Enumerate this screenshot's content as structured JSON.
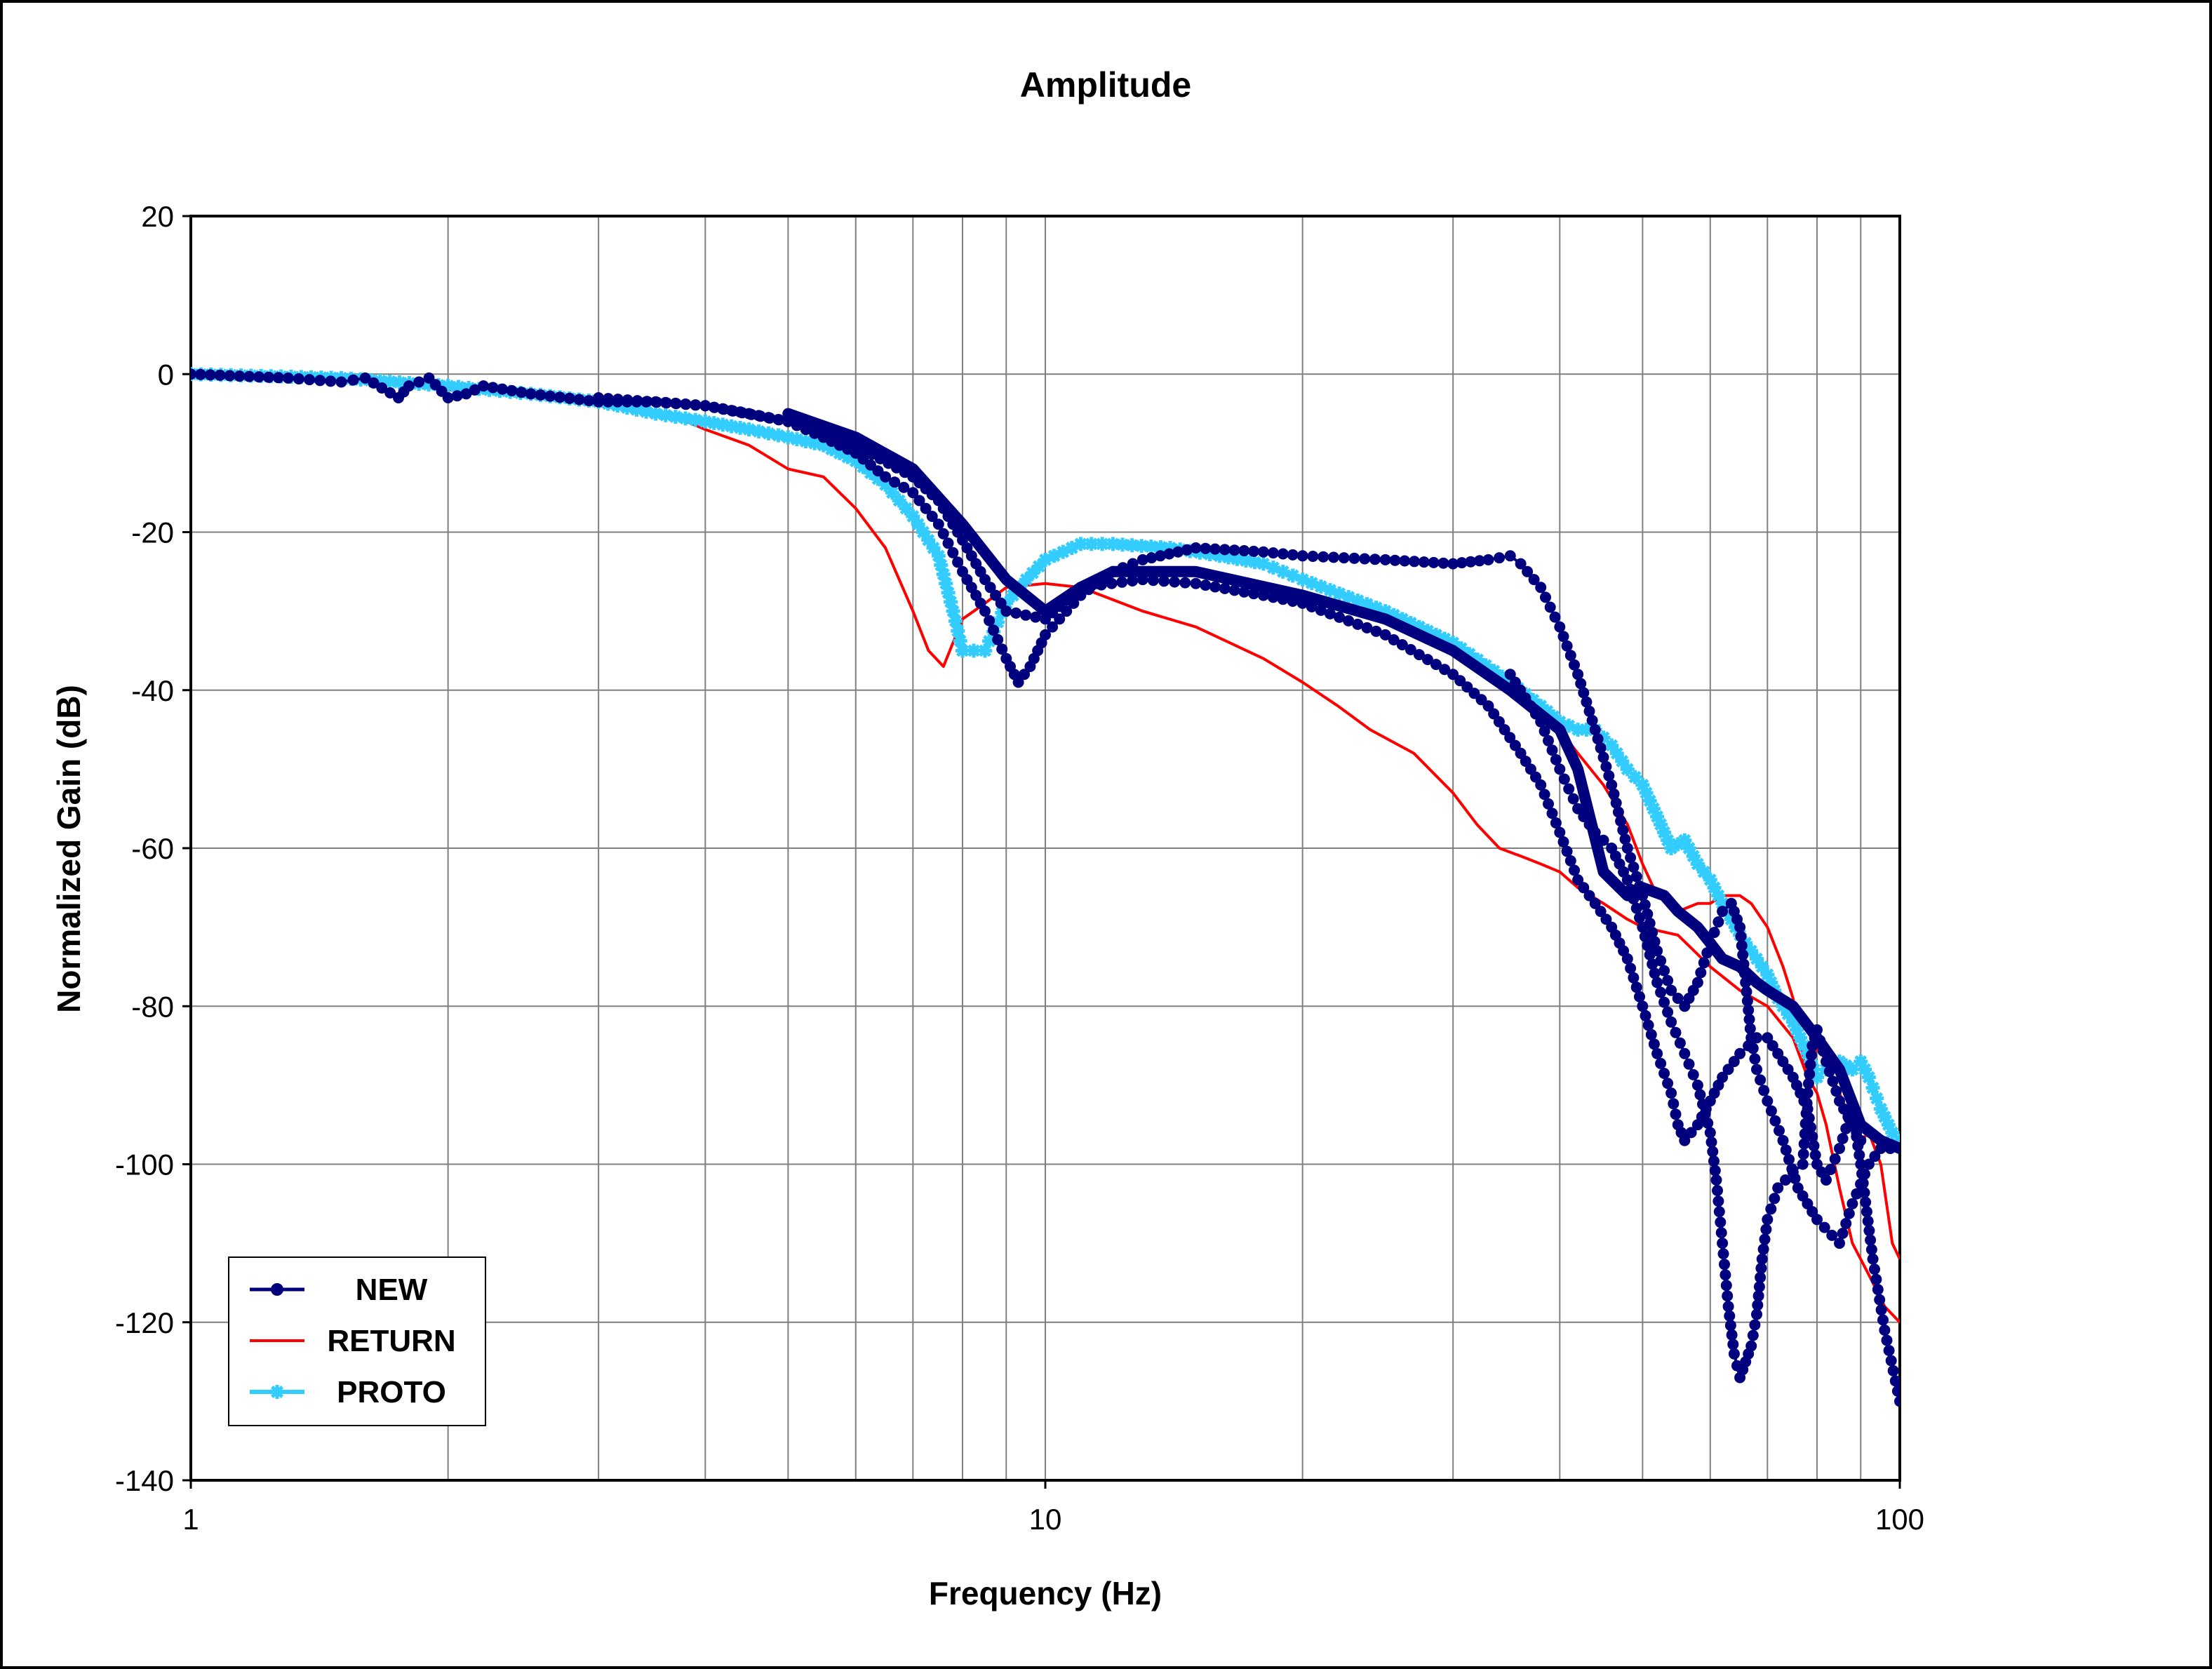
{
  "colors": {
    "new": "#00007f",
    "return": "#ff0000",
    "proto": "#33ccff",
    "grid": "#808080",
    "frame": "#000000",
    "background": "#ffffff"
  },
  "chart_data": {
    "type": "line",
    "title": "Amplitude",
    "xlabel": "Frequency (Hz)",
    "ylabel": "Normalized Gain (dB)",
    "xscale": "log",
    "xlim": [
      1,
      100
    ],
    "ylim": [
      -140,
      20
    ],
    "x_tick_labels": [
      "1",
      "10",
      "100"
    ],
    "y_ticks": [
      20,
      0,
      -20,
      -40,
      -60,
      -80,
      -100,
      -120,
      -140
    ],
    "y_tick_labels": [
      "20",
      "0",
      "-20",
      "-40",
      "-60",
      "-80",
      "-100",
      "-120",
      "-140"
    ],
    "grid": true,
    "legend": {
      "position": "bottom-left",
      "entries": [
        "NEW",
        "RETURN",
        "PROTO"
      ]
    },
    "series": [
      {
        "name": "NEW",
        "key": "new",
        "style": "line-markers-circle",
        "points": [
          [
            1,
            0
          ],
          [
            1.3,
            -0.5
          ],
          [
            1.5,
            -1
          ],
          [
            1.6,
            -0.5
          ],
          [
            1.75,
            -3
          ],
          [
            1.8,
            -1.5
          ],
          [
            1.9,
            -0.5
          ],
          [
            2,
            -3
          ],
          [
            2.1,
            -2.5
          ],
          [
            2.2,
            -1.5
          ],
          [
            2.5,
            -2.5
          ],
          [
            3,
            -3.5
          ],
          [
            3.5,
            -3.5
          ],
          [
            4,
            -4
          ],
          [
            4.5,
            -5
          ],
          [
            5,
            -6
          ],
          [
            5.5,
            -8
          ],
          [
            6,
            -10
          ],
          [
            6.5,
            -13
          ],
          [
            7,
            -15
          ],
          [
            7.5,
            -19
          ],
          [
            8,
            -25
          ],
          [
            8.5,
            -30
          ],
          [
            9,
            -36
          ],
          [
            9.3,
            -39
          ],
          [
            9.6,
            -37
          ],
          [
            10,
            -33
          ],
          [
            11,
            -28
          ],
          [
            12,
            -25
          ],
          [
            13,
            -23.5
          ],
          [
            15,
            -22
          ],
          [
            18,
            -22.5
          ],
          [
            20,
            -23
          ],
          [
            25,
            -23.5
          ],
          [
            30,
            -24
          ],
          [
            33,
            -23.5
          ],
          [
            35,
            -23
          ],
          [
            36,
            -24
          ],
          [
            38,
            -27
          ],
          [
            40,
            -32
          ],
          [
            42,
            -38
          ],
          [
            44,
            -45
          ],
          [
            46,
            -52
          ],
          [
            48,
            -60
          ],
          [
            50,
            -66
          ],
          [
            52,
            -73
          ],
          [
            54,
            -78
          ],
          [
            56,
            -80
          ],
          [
            58,
            -77
          ],
          [
            60,
            -72
          ],
          [
            62,
            -68
          ],
          [
            63.5,
            -67
          ],
          [
            65,
            -70
          ],
          [
            66,
            -77
          ],
          [
            67,
            -84
          ],
          [
            68,
            -88
          ],
          [
            70,
            -92
          ],
          [
            73,
            -97
          ],
          [
            76,
            -103
          ],
          [
            80,
            -107
          ],
          [
            85,
            -110
          ],
          [
            88,
            -105
          ],
          [
            92,
            -100
          ],
          [
            95,
            -98
          ],
          [
            100,
            -98
          ]
        ]
      },
      {
        "name": "NEW",
        "key": "new",
        "style": "line-markers-circle",
        "points": [
          [
            3,
            -3
          ],
          [
            4,
            -4
          ],
          [
            5,
            -6
          ],
          [
            6,
            -9
          ],
          [
            7,
            -13
          ],
          [
            7.5,
            -16
          ],
          [
            8,
            -21
          ],
          [
            8.5,
            -26
          ],
          [
            9,
            -30
          ],
          [
            10,
            -31
          ],
          [
            11,
            -27
          ],
          [
            13,
            -26
          ],
          [
            15,
            -26.5
          ],
          [
            18,
            -28
          ],
          [
            20,
            -29
          ],
          [
            25,
            -33
          ],
          [
            30,
            -38
          ],
          [
            33,
            -42
          ],
          [
            36,
            -48
          ],
          [
            38,
            -52
          ],
          [
            40,
            -58
          ],
          [
            42,
            -64
          ],
          [
            44,
            -67
          ],
          [
            46,
            -70
          ],
          [
            48,
            -74
          ],
          [
            50,
            -80
          ],
          [
            52,
            -86
          ],
          [
            54,
            -91
          ],
          [
            55,
            -95
          ],
          [
            56,
            -97
          ],
          [
            58,
            -95
          ],
          [
            60,
            -92
          ],
          [
            62,
            -89
          ],
          [
            65,
            -86
          ],
          [
            68,
            -84
          ],
          [
            70,
            -84
          ],
          [
            72,
            -86
          ],
          [
            75,
            -89
          ],
          [
            78,
            -93
          ],
          [
            80,
            -100
          ],
          [
            82,
            -102
          ],
          [
            85,
            -98
          ],
          [
            88,
            -93
          ],
          [
            90,
            -100
          ],
          [
            93,
            -112
          ],
          [
            96,
            -121
          ],
          [
            100,
            -130
          ]
        ]
      },
      {
        "name": "NEW",
        "key": "new",
        "style": "line-markers-circle",
        "points": [
          [
            35,
            -38
          ],
          [
            38,
            -44
          ],
          [
            40,
            -50
          ],
          [
            42,
            -55
          ],
          [
            44,
            -58
          ],
          [
            46,
            -60
          ],
          [
            48,
            -64
          ],
          [
            50,
            -70
          ],
          [
            52,
            -77
          ],
          [
            54,
            -82
          ],
          [
            56,
            -86
          ],
          [
            58,
            -90
          ],
          [
            60,
            -96
          ],
          [
            61,
            -102
          ],
          [
            62,
            -110
          ],
          [
            63,
            -118
          ],
          [
            64,
            -124
          ],
          [
            65,
            -127
          ],
          [
            66,
            -125
          ],
          [
            67,
            -123
          ],
          [
            68,
            -119
          ],
          [
            69,
            -112
          ],
          [
            70,
            -107
          ],
          [
            72,
            -103
          ],
          [
            75,
            -101
          ],
          [
            77,
            -100
          ],
          [
            78,
            -91
          ],
          [
            79,
            -85
          ],
          [
            80,
            -83
          ],
          [
            82,
            -87
          ],
          [
            85,
            -92
          ],
          [
            88,
            -95
          ],
          [
            90,
            -97
          ]
        ]
      },
      {
        "name": "NEW",
        "key": "new",
        "style": "thick-line",
        "points": [
          [
            5,
            -5
          ],
          [
            6,
            -8
          ],
          [
            7,
            -12
          ],
          [
            8,
            -19
          ],
          [
            9,
            -26
          ],
          [
            10,
            -30
          ],
          [
            11,
            -27
          ],
          [
            12,
            -25
          ],
          [
            15,
            -25
          ],
          [
            20,
            -28
          ],
          [
            25,
            -31
          ],
          [
            30,
            -35
          ],
          [
            35,
            -40
          ],
          [
            40,
            -45
          ],
          [
            42,
            -50
          ],
          [
            45,
            -63
          ],
          [
            48,
            -66
          ],
          [
            50,
            -65
          ],
          [
            53,
            -66
          ],
          [
            55,
            -68
          ],
          [
            58,
            -70
          ],
          [
            60,
            -72
          ],
          [
            62,
            -74
          ],
          [
            65,
            -75
          ],
          [
            68,
            -77
          ],
          [
            70,
            -78
          ],
          [
            75,
            -80
          ],
          [
            80,
            -84
          ],
          [
            85,
            -88
          ],
          [
            90,
            -95
          ],
          [
            95,
            -97
          ],
          [
            100,
            -98
          ]
        ]
      },
      {
        "name": "RETURN",
        "key": "return",
        "style": "line",
        "points": [
          [
            1,
            0
          ],
          [
            1.5,
            -0.5
          ],
          [
            2,
            -2
          ],
          [
            2.5,
            -2.5
          ],
          [
            3,
            -4
          ],
          [
            3.5,
            -5
          ],
          [
            3.8,
            -6
          ],
          [
            4,
            -7
          ],
          [
            4.5,
            -9
          ],
          [
            5,
            -12
          ],
          [
            5.5,
            -13
          ],
          [
            6,
            -17
          ],
          [
            6.5,
            -22
          ],
          [
            7,
            -30
          ],
          [
            7.3,
            -35
          ],
          [
            7.6,
            -37
          ],
          [
            8,
            -31
          ],
          [
            8.5,
            -29
          ],
          [
            9,
            -27
          ],
          [
            10,
            -26.5
          ],
          [
            11,
            -27
          ],
          [
            13,
            -30
          ],
          [
            15,
            -32
          ],
          [
            18,
            -36
          ],
          [
            20,
            -39
          ],
          [
            22,
            -42
          ],
          [
            24,
            -45
          ],
          [
            27,
            -48
          ],
          [
            30,
            -53
          ],
          [
            32,
            -57
          ],
          [
            34,
            -60
          ],
          [
            36,
            -61
          ],
          [
            38,
            -62
          ],
          [
            40,
            -63
          ],
          [
            42,
            -65
          ],
          [
            45,
            -67
          ],
          [
            48,
            -69
          ],
          [
            50,
            -70
          ],
          [
            55,
            -71
          ],
          [
            60,
            -75
          ],
          [
            65,
            -78
          ],
          [
            70,
            -80
          ],
          [
            75,
            -84
          ],
          [
            78,
            -89
          ],
          [
            80,
            -91
          ],
          [
            82,
            -95
          ],
          [
            85,
            -103
          ],
          [
            88,
            -110
          ],
          [
            92,
            -114
          ],
          [
            96,
            -118
          ],
          [
            100,
            -120
          ]
        ]
      },
      {
        "name": "RETURN",
        "key": "return",
        "style": "line",
        "points": [
          [
            40,
            -45
          ],
          [
            42,
            -48
          ],
          [
            45,
            -52
          ],
          [
            48,
            -57
          ],
          [
            50,
            -62
          ],
          [
            52,
            -66
          ],
          [
            55,
            -68
          ],
          [
            58,
            -67
          ],
          [
            60,
            -67
          ],
          [
            62,
            -66
          ],
          [
            65,
            -66
          ],
          [
            67,
            -67
          ],
          [
            70,
            -70
          ],
          [
            73,
            -75
          ],
          [
            75,
            -79
          ],
          [
            77,
            -86
          ],
          [
            78,
            -90
          ],
          [
            80,
            -85
          ],
          [
            82,
            -87
          ],
          [
            85,
            -91
          ],
          [
            88,
            -95
          ],
          [
            90,
            -97
          ],
          [
            92,
            -96
          ],
          [
            95,
            -100
          ],
          [
            98,
            -110
          ],
          [
            100,
            -112
          ]
        ]
      },
      {
        "name": "PROTO",
        "key": "proto",
        "style": "line-markers-star",
        "points": [
          [
            1,
            0
          ],
          [
            1.5,
            -0.5
          ],
          [
            2,
            -1.5
          ],
          [
            2.5,
            -2.5
          ],
          [
            3,
            -3.5
          ],
          [
            3.5,
            -5
          ],
          [
            4,
            -6
          ],
          [
            4.5,
            -7
          ],
          [
            5,
            -8
          ],
          [
            5.5,
            -9
          ],
          [
            6,
            -11
          ],
          [
            6.5,
            -14
          ],
          [
            7,
            -18
          ],
          [
            7.5,
            -23
          ],
          [
            7.8,
            -30
          ],
          [
            8,
            -35
          ],
          [
            8.5,
            -35
          ],
          [
            9,
            -29
          ],
          [
            9.5,
            -26
          ],
          [
            10,
            -23.5
          ],
          [
            11,
            -21.5
          ],
          [
            12,
            -21.5
          ],
          [
            14,
            -22
          ],
          [
            16,
            -23
          ],
          [
            18,
            -24
          ],
          [
            20,
            -26
          ],
          [
            25,
            -30
          ],
          [
            30,
            -34
          ],
          [
            35,
            -39
          ],
          [
            38,
            -42
          ],
          [
            40,
            -44
          ],
          [
            42,
            -45
          ],
          [
            44,
            -45
          ],
          [
            46,
            -47
          ],
          [
            48,
            -50
          ],
          [
            50,
            -52
          ],
          [
            52,
            -56
          ],
          [
            54,
            -60
          ],
          [
            56,
            -59
          ],
          [
            58,
            -62
          ],
          [
            60,
            -64
          ],
          [
            62,
            -67
          ],
          [
            65,
            -71
          ],
          [
            68,
            -74
          ],
          [
            70,
            -76
          ],
          [
            72,
            -79
          ],
          [
            75,
            -82
          ],
          [
            78,
            -86
          ],
          [
            80,
            -89
          ],
          [
            82,
            -88
          ],
          [
            85,
            -87
          ],
          [
            88,
            -88
          ],
          [
            90,
            -87
          ],
          [
            92,
            -89
          ],
          [
            95,
            -93
          ],
          [
            98,
            -96
          ],
          [
            100,
            -97
          ]
        ]
      }
    ]
  }
}
